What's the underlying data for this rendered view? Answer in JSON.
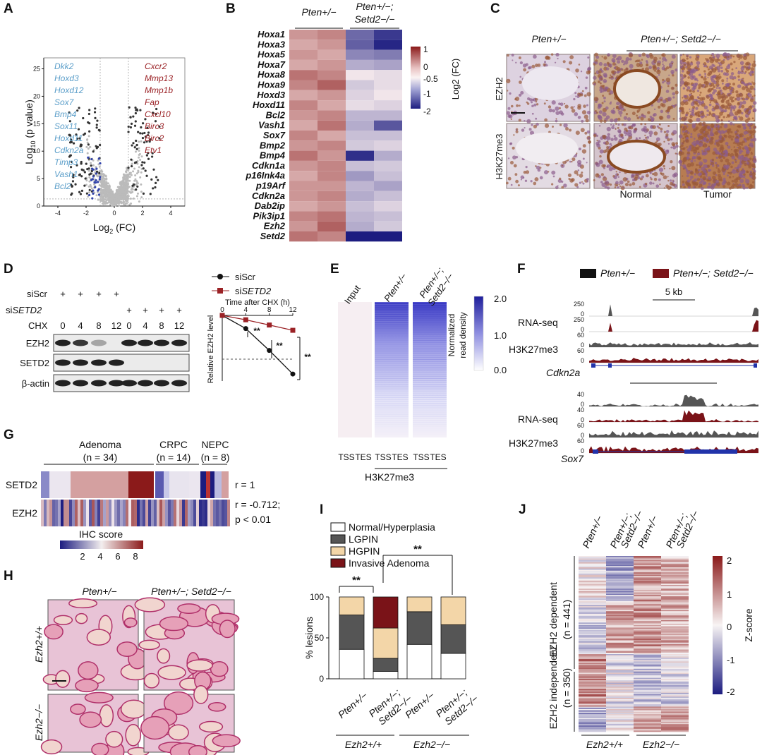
{
  "panels": [
    "A",
    "B",
    "C",
    "D",
    "E",
    "F",
    "G",
    "H",
    "I",
    "J"
  ],
  "colors": {
    "red": "#9b2226",
    "blue": "#5b9ec9",
    "navy": "#1f1f8c",
    "dark": "#7a1318"
  },
  "A": {
    "xlabel_base": "Log",
    "xlabel_sub": "2",
    "xlabel_tail": " (FC)",
    "ylabel_base": "Log",
    "ylabel_sub": "10",
    "ylabel_tail": " (p value)",
    "yticks": [
      "25",
      "20",
      "15",
      "10",
      "5",
      "0"
    ],
    "xticks": [
      "-4",
      "-2",
      "0",
      "2",
      "4"
    ],
    "down_genes": [
      "Dkk2",
      "Hoxd3",
      "Hoxd12",
      "Sox7",
      "Bmp4",
      "Sox11",
      "Hoxd11",
      "Cdkn2a",
      "Timp3",
      "Vash1",
      "Bcl2"
    ],
    "up_genes": [
      "Cxcr2",
      "Mmp13",
      "Mmp1b",
      "Fap",
      "Cxcl10",
      "Birc3",
      "Birc2",
      "Etv1"
    ]
  },
  "B": {
    "col_group1": "Pten+/−",
    "col_group2_line1": "Pten+/−;",
    "col_group2_line2": "Setd2−/−",
    "genes": [
      "Hoxa1",
      "Hoxa3",
      "Hoxa5",
      "Hoxa7",
      "Hoxa8",
      "Hoxa9",
      "Hoxd3",
      "Hoxd11",
      "Bcl2",
      "Vash1",
      "Sox7",
      "Bmp2",
      "Bmp4",
      "Cdkn1a",
      "p16Ink4a",
      "p19Arf",
      "Cdkn2a",
      "Dab2ip",
      "Pik3ip1",
      "Ezh2",
      "Setd2"
    ],
    "values": [
      [
        0.5,
        0.6,
        -1.4,
        -1.9
      ],
      [
        0.4,
        0.5,
        -1.5,
        -2.1
      ],
      [
        0.5,
        0.4,
        -1.1,
        -1.2
      ],
      [
        0.4,
        0.5,
        -0.7,
        -0.8
      ],
      [
        0.7,
        0.6,
        -0.1,
        -0.2
      ],
      [
        0.6,
        0.8,
        -0.4,
        -0.2
      ],
      [
        0.4,
        0.5,
        -0.3,
        -0.1
      ],
      [
        0.6,
        0.4,
        -0.2,
        -0.3
      ],
      [
        0.5,
        0.6,
        -0.6,
        -0.6
      ],
      [
        0.4,
        0.7,
        -0.7,
        -1.6
      ],
      [
        0.6,
        0.4,
        -0.5,
        -0.5
      ],
      [
        0.5,
        0.6,
        -0.4,
        -0.3
      ],
      [
        0.7,
        0.5,
        -2.0,
        -0.7
      ],
      [
        0.5,
        0.6,
        -0.5,
        -0.4
      ],
      [
        0.4,
        0.6,
        -0.9,
        -0.5
      ],
      [
        0.5,
        0.5,
        -0.6,
        -0.8
      ],
      [
        0.5,
        0.6,
        -0.7,
        -0.5
      ],
      [
        0.4,
        0.5,
        -0.5,
        -0.3
      ],
      [
        0.6,
        0.7,
        -0.6,
        -0.5
      ],
      [
        0.5,
        0.8,
        -0.7,
        -0.4
      ],
      [
        0.7,
        0.6,
        -2.2,
        -2.2
      ]
    ],
    "legend_label": "Log2 (FC)",
    "legend_ticks": [
      "1",
      "0",
      "-0.5",
      "-1",
      "-2"
    ],
    "colorbar": [
      "#8b1a1a",
      "#c98585",
      "#fbefef",
      "#b6b8da",
      "#5c5cb0",
      "#1c1c80"
    ]
  },
  "C": {
    "col1": "Pten+/−",
    "col2": "Pten+/−; Setd2−/−",
    "row1": "EZH2",
    "row2": "H3K27me3",
    "foot_normal": "Normal",
    "foot_tumor": "Tumor"
  },
  "D": {
    "row_siScr": "siScr",
    "row_siSETD2": "siSETD2",
    "row_CHX": "CHX",
    "chx_values": [
      "0",
      "4",
      "8",
      "12",
      "0",
      "4",
      "8",
      "12"
    ],
    "plus": "+",
    "bands": [
      "EZH2",
      "SETD2",
      "β-actin"
    ],
    "legend": [
      "siScr",
      "siSETD2"
    ],
    "xlabel": "Time after CHX (h)",
    "xticks": [
      "0",
      "4",
      "8",
      "12"
    ],
    "ylabel": "Relative EZH2 level",
    "sig": "**",
    "chart_data": {
      "type": "line",
      "x": [
        0,
        4,
        8,
        12
      ],
      "series": [
        {
          "name": "siScr",
          "values": [
            0,
            -0.15,
            -0.4,
            -0.67
          ]
        },
        {
          "name": "siSETD2",
          "values": [
            0,
            -0.05,
            -0.11,
            -0.17
          ]
        }
      ],
      "reference_line": -0.5
    }
  },
  "E": {
    "cols": [
      "Input",
      "Pten+/−",
      "Pten+/−; Setd2−/−"
    ],
    "tss": "TSS",
    "tes": "TES",
    "footer": "H3K27me3",
    "legend_label_1": "Normalized",
    "legend_label_2": "read density",
    "legend_ticks": [
      "2.0",
      "1.0",
      "0.0"
    ]
  },
  "F": {
    "legend": [
      "Pten+/−",
      "Pten+/−; Setd2−/−"
    ],
    "scale": "5 kb",
    "rna": "RNA-seq",
    "h3": "H3K27me3",
    "gene1": "Cdkn2a",
    "gene2": "Sox7",
    "ticks1": [
      "250",
      "0",
      "250",
      "0",
      "60",
      "0",
      "60",
      "0"
    ],
    "ticks2": [
      "40",
      "0",
      "40",
      "0",
      "60",
      "0",
      "60",
      "0"
    ]
  },
  "G": {
    "groups": [
      "Adenoma",
      "(n = 34)",
      "CRPC",
      "(n = 14)",
      "NEPC",
      "(n = 8)"
    ],
    "rows": [
      "SETD2",
      "EZH2"
    ],
    "r1": "r = 1",
    "r2": "r = -0.712;",
    "p": "p < 0.01",
    "legend_title": "IHC score",
    "legend_ticks": [
      "2",
      "4",
      "6",
      "8"
    ]
  },
  "H": {
    "col1": "Pten+/−",
    "col2": "Pten+/−; Setd2−/−",
    "row1": "Ezh2+/+",
    "row2": "Ezh2−/−"
  },
  "I": {
    "legend": [
      "Normal/Hyperplasia",
      "LGPIN",
      "HGPIN",
      "Invasive Adenoma"
    ],
    "ylabel": "% lesions",
    "yticks": [
      "100",
      "50",
      "0"
    ],
    "xlabels": [
      "Pten+/−",
      "Pten+/−; Setd2−/−",
      "Pten+/−",
      "Pten+/−; Setd2−/−"
    ],
    "groups": [
      "Ezh2+/+",
      "Ezh2−/−"
    ],
    "sig": "**",
    "chart_data": {
      "type": "bar",
      "stacked": true,
      "categories": [
        "Pten+/− Ezh2+/+",
        "Pten+/−;Setd2−/− Ezh2+/+",
        "Pten+/− Ezh2−/−",
        "Pten+/−;Setd2−/− Ezh2−/−"
      ],
      "series": [
        {
          "name": "Normal/Hyperplasia",
          "values": [
            36,
            9,
            42,
            31
          ]
        },
        {
          "name": "LGPIN",
          "values": [
            42,
            16,
            40,
            35
          ]
        },
        {
          "name": "HGPIN",
          "values": [
            22,
            37,
            18,
            34
          ]
        },
        {
          "name": "Invasive Adenoma",
          "values": [
            0,
            38,
            0,
            0
          ]
        }
      ],
      "ylim": [
        0,
        100
      ]
    }
  },
  "J": {
    "cols": [
      "Pten+/−",
      "Pten+/−; Setd2−/−",
      "Pten+/−",
      "Pten+/−; Setd2−/−"
    ],
    "row1": "EZH2 dependent",
    "row1n": "(n = 441)",
    "row2": "EZH2 independent",
    "row2n": "(n = 350)",
    "groups": [
      "Ezh2+/+",
      "Ezh2−/−"
    ],
    "legend_label": "Z-score",
    "legend_ticks": [
      "2",
      "1",
      "0",
      "-1",
      "-2"
    ]
  }
}
